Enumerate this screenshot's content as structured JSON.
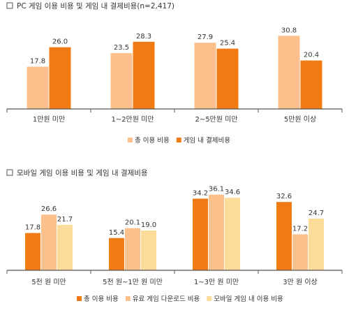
{
  "chart_data": [
    {
      "type": "bar",
      "title": "PC 게임 이용 비용 및 게임 내 결제비용(n=2,417)",
      "categories": [
        "1만원 미만",
        "1~2만원 미만",
        "2~5만원 미만",
        "5만원 이상"
      ],
      "series": [
        {
          "name": "총 이용 비용",
          "color": "#FCC08C",
          "values": [
            17.8,
            23.5,
            27.9,
            30.8
          ]
        },
        {
          "name": "게임 내 결제비용",
          "color": "#F07A14",
          "values": [
            26.0,
            28.3,
            25.4,
            20.4
          ]
        }
      ],
      "ylim": [
        0,
        35
      ],
      "legend": "bottom",
      "grid": false
    },
    {
      "type": "bar",
      "title": "모바일 게임 이용 비용 및 게임 내 결제비용",
      "categories": [
        "5천 원 미만",
        "5천 원~1만 원 미만",
        "1~3만 원 미만",
        "3만 원 이상"
      ],
      "series": [
        {
          "name": "총 이용 비용",
          "color": "#F07A14",
          "values": [
            17.8,
            15.4,
            34.2,
            32.6
          ]
        },
        {
          "name": "유료 게임 다운로드 비용",
          "color": "#FCC08C",
          "values": [
            26.6,
            20.1,
            36.1,
            17.2
          ]
        },
        {
          "name": "모바일 게임 내 이용 비용",
          "color": "#FDDB99",
          "values": [
            21.7,
            19.0,
            34.6,
            24.7
          ]
        }
      ],
      "ylim": [
        0,
        40
      ],
      "legend": "bottom",
      "grid": false
    }
  ]
}
